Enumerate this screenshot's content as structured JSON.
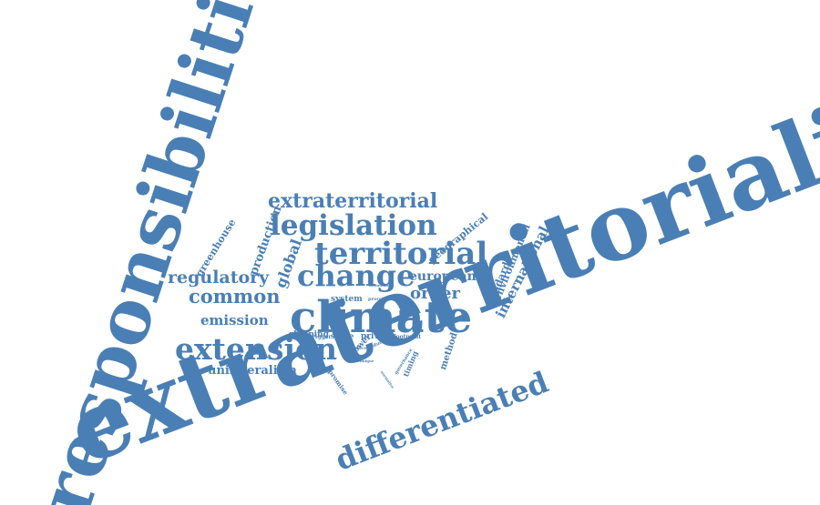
{
  "palette": {
    "word": "#4a7fb5",
    "background": "#ffffff"
  },
  "words": [
    "extraterritoriality",
    "responsibilities",
    "climate",
    "extension",
    "territorial",
    "legislation",
    "change",
    "differentiated",
    "extraterritorial",
    "common",
    "regulatory",
    "order",
    "emission",
    "international",
    "unilateralism",
    "global",
    "european",
    "production",
    "greenhouse",
    "geographical",
    "environmental",
    "standard",
    "private",
    "shipping",
    "method",
    "system",
    "promise",
    "power",
    "timing",
    "scope",
    "footprint",
    "trigger",
    "reducing",
    "reduce",
    "distinction",
    "proc",
    "cbdr",
    "governance",
    "technique",
    "normative"
  ]
}
